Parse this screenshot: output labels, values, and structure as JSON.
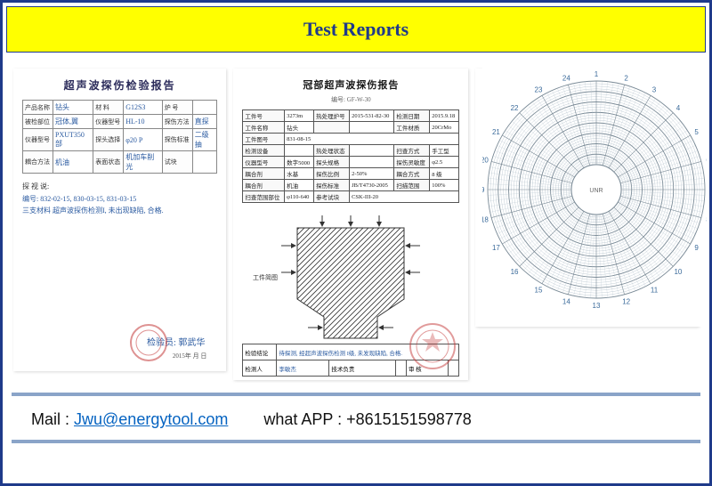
{
  "header": {
    "title": "Test Reports"
  },
  "doc1": {
    "title": "超声波探伤检验报告",
    "rows": [
      {
        "l1": "产品名称",
        "v1": "钻头",
        "l2": "材 料",
        "v2": "G12S3",
        "l3": "炉 号",
        "v3": ""
      },
      {
        "l1": "被检部位",
        "v1": "冠体,翼",
        "l2": "仪器型号",
        "v2": "HL-10",
        "l3": "探伤方法",
        "v3": "直探"
      },
      {
        "l1": "仪器型号",
        "v1": "PXUT350部",
        "l2": "探头选择",
        "v2": "φ20 P",
        "l3": "探伤标准",
        "v3": "二级抽"
      },
      {
        "l1": "耦合方法",
        "v1": "机油",
        "l2": "表面状态",
        "v2": "机加车削光",
        "l3": "试块",
        "v3": ""
      }
    ],
    "body_label": "探 视 说:",
    "body_l1": "编号: 832-02-15, 830-03-15, 831-03-15",
    "body_l2": "三支材料 超声波探伤检测I, 未出现缺陷, 合格.",
    "sig_label": "检验员:",
    "sig": "郭武华",
    "date": "2015年 月 日"
  },
  "doc2": {
    "title": "冠部超声波探伤报告",
    "sub": "编号: GF-W-30",
    "r1": {
      "a": "工件号",
      "av": "3273m",
      "b": "热处理炉号",
      "bv": "2015-531-82-30",
      "c": "检测日期",
      "cv": "2015.9.18"
    },
    "r2": {
      "a": "工件名称",
      "av": "钻头",
      "b": "",
      "bv": "",
      "c": "工件材质",
      "cv": "20CrMo"
    },
    "r3": {
      "a": "工件图号",
      "av": "831-08-15"
    },
    "r4": {
      "a": "检测设备",
      "av": "",
      "b": "热处理状态",
      "bv": "",
      "c": "扫查方式",
      "cv": "手工型"
    },
    "r5": {
      "a": "仪器型号",
      "av": "数字5000",
      "b": "探头规格",
      "bv": "",
      "c": "探伤灵敏度",
      "cv": "φ2.5"
    },
    "r6": {
      "a": "耦合剂",
      "av": "水基",
      "b": "探伤比例",
      "bv": "2-50%",
      "c": "耦合方式",
      "cv": "8 级"
    },
    "r7": {
      "a": "耦合剂",
      "av": "机油",
      "b": "探伤标准",
      "bv": "JB/T4730-2005",
      "c": "扫描范围",
      "cv": "100%"
    },
    "r8": {
      "a": "扫查范围部位",
      "av": "φ110-640",
      "b": "参考试块",
      "bv": "CSK-III-20"
    },
    "piece_label": "工件简图",
    "foot": {
      "a": "检验结论",
      "av": "待探测, 经超声波探伤检测 I级, 未发现缺陷, 合格.",
      "b": "检测人",
      "bv": "李敏杰",
      "c": "技术负责",
      "cv": "",
      "d": "审 核",
      "dv": "",
      "e": "打 印",
      "ev": ""
    }
  },
  "doc3": {
    "type": "polar-chart",
    "outer_radius": 122,
    "inner_radius": 28,
    "background": "#ffffff",
    "ring_stroke": "#b4c2cc",
    "ring_accent": "#7a8a96",
    "rings": 32,
    "divisions": 24,
    "hour_labels": [
      "1",
      "2",
      "3",
      "4",
      "5",
      "6",
      "7",
      "8",
      "9",
      "10",
      "11",
      "12",
      "13",
      "14",
      "15",
      "16",
      "17",
      "18",
      "19",
      "20",
      "21",
      "22",
      "23",
      "24"
    ],
    "label_fontsize": 8,
    "label_color": "#3a6a9a",
    "center_text": "UNR"
  },
  "contact": {
    "mail_label": "Mail : ",
    "mail": "Jwu@energytool.com",
    "wa_label": "what APP : ",
    "wa": "+8615151598778"
  },
  "colors": {
    "frame": "#1f3a8a",
    "header_bg": "#ffff00",
    "rule": "#8aa4c8",
    "stamp": "#c43a3a"
  }
}
